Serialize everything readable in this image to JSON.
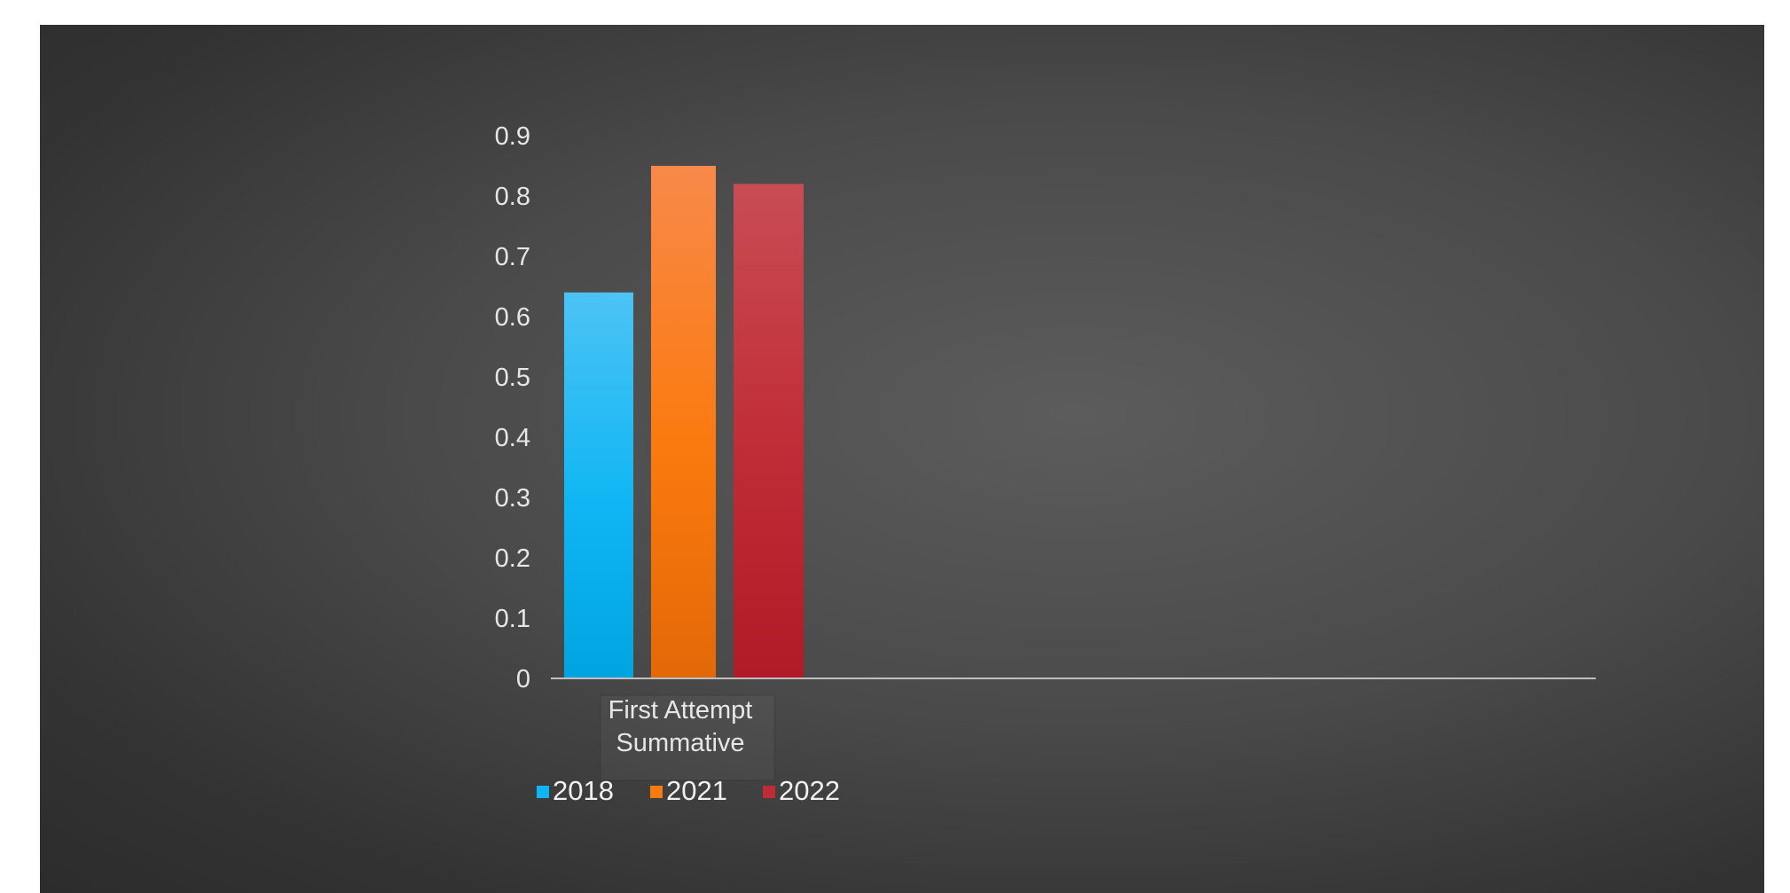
{
  "chart_data": {
    "type": "bar",
    "title": "",
    "xlabel": "",
    "ylabel": "",
    "categories": [
      "First Attempt Summative"
    ],
    "category_lines": [
      "First Attempt",
      "Summative"
    ],
    "series": [
      {
        "name": "2018",
        "values": [
          0.64
        ],
        "color_top": "#4cc3f5",
        "color_mid": "#0fb6f3",
        "color_bottom": "#00a4e0"
      },
      {
        "name": "2021",
        "values": [
          0.85
        ],
        "color_top": "#f8894a",
        "color_mid": "#fb7a0e",
        "color_bottom": "#e36808"
      },
      {
        "name": "2022",
        "values": [
          0.82
        ],
        "color_top": "#c94c55",
        "color_mid": "#c02c35",
        "color_bottom": "#b11a26"
      }
    ],
    "ylim": [
      0,
      0.9
    ],
    "yticks": [
      "0",
      "0.1",
      "0.2",
      "0.3",
      "0.4",
      "0.5",
      "0.6",
      "0.7",
      "0.8",
      "0.9"
    ],
    "grid": false,
    "legend_position": "bottom-left",
    "background": "#4a4a4a",
    "axis_color": "#bfbfbf"
  }
}
